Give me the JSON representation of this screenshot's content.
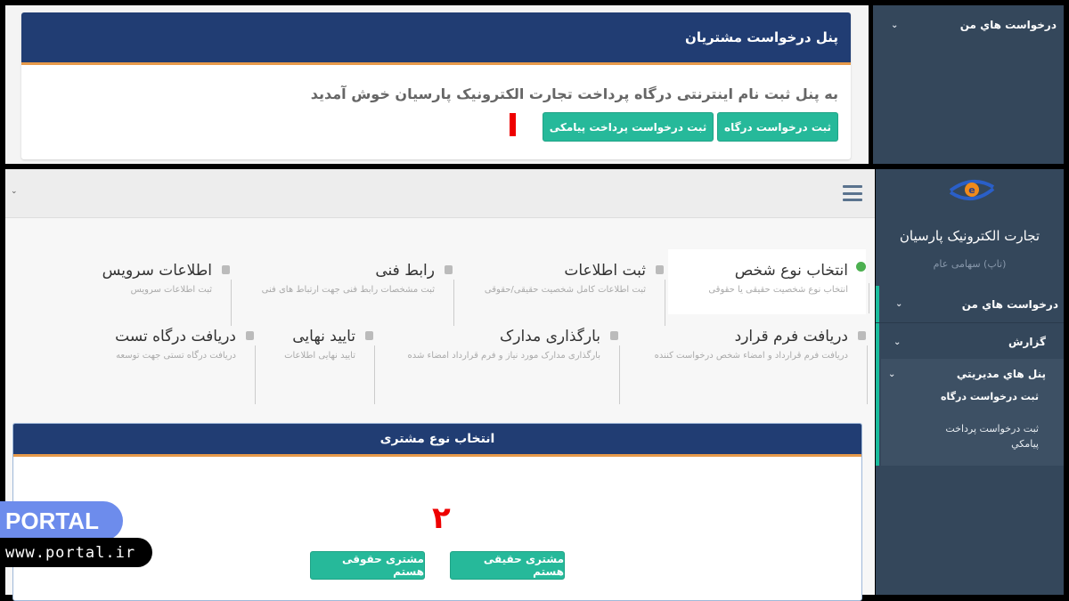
{
  "top_screenshot": {
    "panel_title": "پنل درخواست مشتریان",
    "welcome": "به پنل ثبت نام اینترنتی درگاه پرداخت تجارت الکترونیک پارسیان خوش آمدید",
    "buttons": {
      "gateway_request": "ثبت درخواست درگاه",
      "sms_payment_request": "ثبت درخواست پرداخت پیامکی"
    },
    "sidebar_item": "درخواست هاي من"
  },
  "bottom_screenshot": {
    "brand": {
      "name": "تجارت الکترونیک پارسیان",
      "subtitle": "(تاپ) سهامی عام"
    },
    "sidebar": {
      "my_requests": "درخواست هاي من",
      "report": "گزارش",
      "admin_panels": "پنل هاي مديريتي",
      "sub_items": [
        "ثبت درخواست درگاه",
        "ثبت درخواست پرداخت پيامكي"
      ]
    },
    "steps": [
      {
        "title": "انتخاب نوع شخص",
        "desc": "انتخاب نوع شخصیت حقیقی یا حقوقی",
        "status": "active"
      },
      {
        "title": "ثبت اطلاعات",
        "desc": "ثبت اطلاعات کامل شخصیت حقیقی/حقوقی",
        "status": "locked"
      },
      {
        "title": "رابط فنی",
        "desc": "ثبت مشخصات رابط فنی جهت ارتباط های فنی",
        "status": "locked"
      },
      {
        "title": "اطلاعات سرویس",
        "desc": "ثبت اطلاعات سرویس",
        "status": "locked"
      },
      {
        "title": "دریافت فرم قرارد",
        "desc": "دریافت فرم قرارداد و امضاء شخص درخواست کننده",
        "status": "locked"
      },
      {
        "title": "بارگذاری مدارک",
        "desc": "بارگذاری مدارک مورد نیاز و فرم قرارداد امضاء شده",
        "status": "locked"
      },
      {
        "title": "تایید نهایی",
        "desc": "تایید نهایی اطلاعات",
        "status": "locked"
      },
      {
        "title": "دریافت درگاه تست",
        "desc": "دریافت درگاه تستی جهت توسعه",
        "status": "locked"
      }
    ],
    "customer_type": {
      "title": "انتخاب نوع مشتری",
      "real": "مشتری حقیقی هستم",
      "legal": "مشتری حقوقی هستم"
    }
  },
  "annotations": {
    "marker1": "۱",
    "marker2": "۲"
  },
  "watermark": {
    "logo": "PORTAL",
    "url": "www.portal.ir"
  },
  "colors": {
    "header": "#213d73",
    "accent": "#26b99a",
    "sidebar": "#34475b",
    "marker": "#e00000"
  }
}
